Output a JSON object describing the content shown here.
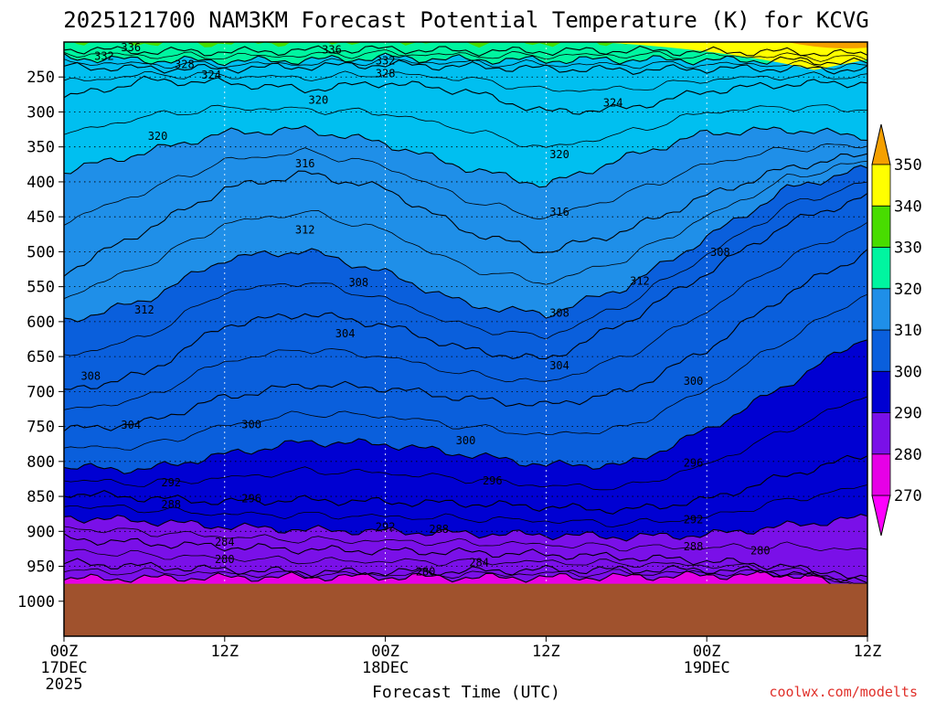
{
  "chart_data": {
    "type": "heatmap",
    "title": "2025121700 NAM3KM Forecast Potential Temperature (K) for KCVG",
    "xlabel": "Forecast Time (UTC)",
    "ylabel": "",
    "credit": "coolwx.com/modelts",
    "x_range_hours": [
      0,
      60
    ],
    "y_range_hpa": [
      200,
      1050
    ],
    "x_ticks": [
      {
        "hour": 0,
        "label": "00Z",
        "line2": "17DEC",
        "line3": "2025"
      },
      {
        "hour": 12,
        "label": "12Z",
        "line2": "",
        "line3": ""
      },
      {
        "hour": 24,
        "label": "00Z",
        "line2": "18DEC",
        "line3": ""
      },
      {
        "hour": 36,
        "label": "12Z",
        "line2": "",
        "line3": ""
      },
      {
        "hour": 48,
        "label": "00Z",
        "line2": "19DEC",
        "line3": ""
      },
      {
        "hour": 60,
        "label": "12Z",
        "line2": "",
        "line3": ""
      }
    ],
    "y_ticks": [
      250,
      300,
      350,
      400,
      450,
      500,
      550,
      600,
      650,
      700,
      750,
      800,
      850,
      900,
      950,
      1000
    ],
    "colorbar": {
      "levels": [
        270,
        280,
        290,
        300,
        310,
        320,
        330,
        340,
        350
      ],
      "labels": [
        "270",
        "280",
        "290",
        "300",
        "310",
        "320",
        "330",
        "340",
        "350"
      ],
      "colors": [
        "#e600e6",
        "#c800ff",
        "#7a10e8",
        "#0000d2",
        "#0a5fdc",
        "#1f8fe8",
        "#00bff0",
        "#00f5a0",
        "#48dc00",
        "#ffff00",
        "#f5a000"
      ],
      "color_ranges": [
        "<270",
        "270-280",
        "280-290",
        "290-300",
        "300-310",
        "310-320",
        "320-330",
        "330-340",
        "340-350",
        ">350"
      ],
      "ground_color": "#a0522d"
    },
    "surface_pressure_hpa": 975,
    "contour_interval": 4,
    "isentropes": [
      {
        "theta": 280,
        "p": [
          968,
          967,
          966,
          965,
          965,
          966,
          966,
          965,
          963,
          962,
          962
        ]
      },
      {
        "theta": 284,
        "p": [
          945,
          950,
          955,
          958,
          958,
          957,
          955,
          955,
          955,
          958,
          985
        ]
      },
      {
        "theta": 288,
        "p": [
          910,
          917,
          922,
          926,
          928,
          930,
          933,
          937,
          942,
          950,
          975
        ]
      },
      {
        "theta": 292,
        "p": [
          880,
          885,
          893,
          898,
          900,
          903,
          905,
          908,
          905,
          892,
          880
        ]
      },
      {
        "theta": 296,
        "p": [
          845,
          852,
          858,
          855,
          858,
          860,
          865,
          870,
          855,
          820,
          790
        ]
      },
      {
        "theta": 300,
        "p": [
          808,
          812,
          790,
          772,
          775,
          790,
          805,
          805,
          755,
          690,
          620
        ]
      },
      {
        "theta": 304,
        "p": [
          755,
          745,
          708,
          690,
          695,
          710,
          720,
          700,
          640,
          560,
          500
        ]
      },
      {
        "theta": 308,
        "p": [
          700,
          675,
          605,
          588,
          605,
          640,
          655,
          600,
          530,
          460,
          420
        ]
      },
      {
        "theta": 312,
        "p": [
          600,
          570,
          510,
          498,
          530,
          575,
          590,
          550,
          480,
          410,
          380
        ]
      },
      {
        "theta": 316,
        "p": [
          530,
          470,
          410,
          388,
          410,
          470,
          500,
          470,
          420,
          380,
          360
        ]
      },
      {
        "theta": 320,
        "p": [
          385,
          358,
          330,
          325,
          345,
          380,
          405,
          365,
          330,
          325,
          335
        ]
      },
      {
        "theta": 324,
        "p": [
          280,
          255,
          258,
          268,
          258,
          270,
          300,
          295,
          270,
          260,
          258
        ]
      },
      {
        "theta": 328,
        "p": [
          235,
          238,
          238,
          235,
          232,
          235,
          238,
          240,
          238,
          238,
          240
        ]
      },
      {
        "theta": 332,
        "p": [
          222,
          226,
          227,
          226,
          222,
          225,
          226,
          225,
          226,
          226,
          230
        ]
      },
      {
        "theta": 336,
        "p": [
          210,
          213,
          214,
          212,
          210,
          213,
          213,
          212,
          214,
          214,
          218
        ]
      }
    ],
    "labels": [
      {
        "text": "336",
        "hour": 5,
        "p": 208
      },
      {
        "text": "336",
        "hour": 20,
        "p": 211
      },
      {
        "text": "332",
        "hour": 3,
        "p": 220
      },
      {
        "text": "332",
        "hour": 24,
        "p": 227
      },
      {
        "text": "328",
        "hour": 9,
        "p": 232
      },
      {
        "text": "328",
        "hour": 24,
        "p": 245
      },
      {
        "text": "324",
        "hour": 11,
        "p": 247
      },
      {
        "text": "320",
        "hour": 19,
        "p": 283
      },
      {
        "text": "324",
        "hour": 41,
        "p": 287
      },
      {
        "text": "320",
        "hour": 7,
        "p": 335
      },
      {
        "text": "320",
        "hour": 37,
        "p": 361
      },
      {
        "text": "316",
        "hour": 18,
        "p": 374
      },
      {
        "text": "316",
        "hour": 37,
        "p": 443
      },
      {
        "text": "312",
        "hour": 18,
        "p": 469
      },
      {
        "text": "308",
        "hour": 49,
        "p": 501
      },
      {
        "text": "312",
        "hour": 6,
        "p": 583
      },
      {
        "text": "312",
        "hour": 43,
        "p": 542
      },
      {
        "text": "308",
        "hour": 22,
        "p": 544
      },
      {
        "text": "308",
        "hour": 37,
        "p": 588
      },
      {
        "text": "304",
        "hour": 21,
        "p": 617
      },
      {
        "text": "304",
        "hour": 37,
        "p": 663
      },
      {
        "text": "300",
        "hour": 47,
        "p": 685
      },
      {
        "text": "308",
        "hour": 2,
        "p": 678
      },
      {
        "text": "304",
        "hour": 5,
        "p": 748
      },
      {
        "text": "300",
        "hour": 14,
        "p": 747
      },
      {
        "text": "300",
        "hour": 30,
        "p": 770
      },
      {
        "text": "296",
        "hour": 47,
        "p": 802
      },
      {
        "text": "292",
        "hour": 8,
        "p": 830
      },
      {
        "text": "296",
        "hour": 32,
        "p": 828
      },
      {
        "text": "296",
        "hour": 14,
        "p": 853
      },
      {
        "text": "288",
        "hour": 8,
        "p": 862
      },
      {
        "text": "292",
        "hour": 47,
        "p": 883
      },
      {
        "text": "292",
        "hour": 24,
        "p": 894
      },
      {
        "text": "288",
        "hour": 28,
        "p": 897
      },
      {
        "text": "284",
        "hour": 12,
        "p": 915
      },
      {
        "text": "288",
        "hour": 47,
        "p": 922
      },
      {
        "text": "280",
        "hour": 52,
        "p": 928
      },
      {
        "text": "280",
        "hour": 12,
        "p": 940
      },
      {
        "text": "284",
        "hour": 31,
        "p": 945
      },
      {
        "text": "280",
        "hour": 27,
        "p": 958
      }
    ]
  }
}
